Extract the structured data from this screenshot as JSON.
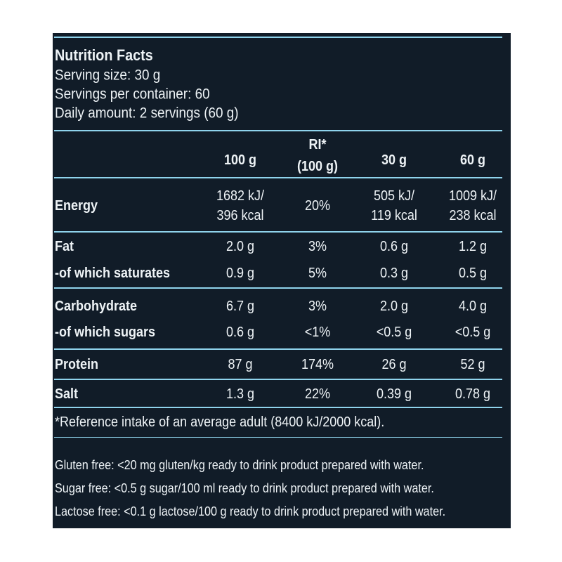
{
  "header": {
    "title": "Nutrition Facts",
    "lines": [
      "Serving size: 30 g",
      "Servings per container: 60",
      "Daily amount: 2 servings (60 g)"
    ]
  },
  "table": {
    "columns": [
      [
        "100 g"
      ],
      [
        "RI*",
        "(100 g)"
      ],
      [
        "30 g"
      ],
      [
        "60 g"
      ]
    ],
    "rows": [
      {
        "label": "Energy",
        "cells": [
          [
            "1682 kJ/",
            "396 kcal"
          ],
          [
            "20%"
          ],
          [
            "505 kJ/",
            "119 kcal"
          ],
          [
            "1009 kJ/",
            "238 kcal"
          ]
        ]
      },
      {
        "label": "Fat",
        "cells": [
          [
            "2.0 g"
          ],
          [
            "3%"
          ],
          [
            "0.6 g"
          ],
          [
            "1.2 g"
          ]
        ]
      },
      {
        "label": "-of which saturates",
        "cells": [
          [
            "0.9 g"
          ],
          [
            "5%"
          ],
          [
            "0.3 g"
          ],
          [
            "0.5 g"
          ]
        ]
      },
      {
        "label": "Carbohydrate",
        "cells": [
          [
            "6.7 g"
          ],
          [
            "3%"
          ],
          [
            "2.0 g"
          ],
          [
            "4.0 g"
          ]
        ]
      },
      {
        "label": "-of which sugars",
        "cells": [
          [
            "0.6 g"
          ],
          [
            "<1%"
          ],
          [
            "<0.5 g"
          ],
          [
            "<0.5 g"
          ]
        ]
      },
      {
        "label": "Protein",
        "cells": [
          [
            "87 g"
          ],
          [
            "174%"
          ],
          [
            "26 g"
          ],
          [
            "52 g"
          ]
        ]
      },
      {
        "label": "Salt",
        "cells": [
          [
            "1.3 g"
          ],
          [
            "22%"
          ],
          [
            "0.39 g"
          ],
          [
            "0.78 g"
          ]
        ]
      }
    ]
  },
  "footnote": "*Reference intake of an average adult (8400 kJ/2000 kcal).",
  "notes": [
    "Gluten free: <20 mg gluten/kg ready to drink product prepared with water.",
    "Sugar free: <0.5 g sugar/100 ml ready to drink product prepared with water.",
    "Lactose free: <0.1 g lactose/100 g ready to drink product prepared with water."
  ]
}
